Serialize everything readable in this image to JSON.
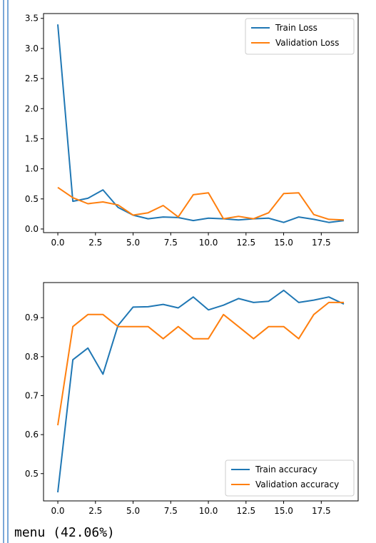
{
  "output_text": "menu (42.06%)",
  "chart_data": [
    {
      "type": "line",
      "x": [
        0,
        1,
        2,
        3,
        4,
        5,
        6,
        7,
        8,
        9,
        10,
        11,
        12,
        13,
        14,
        15,
        16,
        17,
        18,
        19
      ],
      "xlim": [
        -0.95,
        19.95
      ],
      "ylim": [
        -0.06,
        3.58
      ],
      "xticks": [
        0.0,
        2.5,
        5.0,
        7.5,
        10.0,
        12.5,
        15.0,
        17.5
      ],
      "xtick_labels": [
        "0.0",
        "2.5",
        "5.0",
        "7.5",
        "10.0",
        "12.5",
        "15.0",
        "17.5"
      ],
      "yticks": [
        0.0,
        0.5,
        1.0,
        1.5,
        2.0,
        2.5,
        3.0,
        3.5
      ],
      "ytick_labels": [
        "0.0",
        "0.5",
        "1.0",
        "1.5",
        "2.0",
        "2.5",
        "3.0",
        "3.5"
      ],
      "legend_position": "top-right",
      "series": [
        {
          "name": "Train Loss",
          "color": "#1f77b4",
          "values": [
            3.4,
            0.46,
            0.51,
            0.65,
            0.36,
            0.23,
            0.17,
            0.2,
            0.19,
            0.14,
            0.18,
            0.17,
            0.15,
            0.17,
            0.18,
            0.11,
            0.2,
            0.16,
            0.11,
            0.14
          ]
        },
        {
          "name": "Validation Loss",
          "color": "#ff7f0e",
          "values": [
            0.69,
            0.52,
            0.42,
            0.45,
            0.4,
            0.23,
            0.27,
            0.39,
            0.2,
            0.57,
            0.6,
            0.17,
            0.21,
            0.17,
            0.27,
            0.59,
            0.6,
            0.24,
            0.16,
            0.15
          ]
        }
      ]
    },
    {
      "type": "line",
      "x": [
        0,
        1,
        2,
        3,
        4,
        5,
        6,
        7,
        8,
        9,
        10,
        11,
        12,
        13,
        14,
        15,
        16,
        17,
        18,
        19
      ],
      "xlim": [
        -0.95,
        19.95
      ],
      "ylim": [
        0.43,
        0.99
      ],
      "xticks": [
        0.0,
        2.5,
        5.0,
        7.5,
        10.0,
        12.5,
        15.0,
        17.5
      ],
      "xtick_labels": [
        "0.0",
        "2.5",
        "5.0",
        "7.5",
        "10.0",
        "12.5",
        "15.0",
        "17.5"
      ],
      "yticks": [
        0.5,
        0.6,
        0.7,
        0.8,
        0.9
      ],
      "ytick_labels": [
        "0.5",
        "0.6",
        "0.7",
        "0.8",
        "0.9"
      ],
      "legend_position": "bottom-right",
      "series": [
        {
          "name": "Train accuracy",
          "color": "#1f77b4",
          "values": [
            0.452,
            0.792,
            0.822,
            0.755,
            0.88,
            0.927,
            0.928,
            0.934,
            0.925,
            0.953,
            0.92,
            0.932,
            0.949,
            0.939,
            0.942,
            0.97,
            0.939,
            0.945,
            0.953,
            0.935
          ]
        },
        {
          "name": "Validation accuracy",
          "color": "#ff7f0e",
          "values": [
            0.624,
            0.877,
            0.908,
            0.908,
            0.877,
            0.877,
            0.877,
            0.846,
            0.877,
            0.846,
            0.846,
            0.908,
            0.877,
            0.846,
            0.877,
            0.877,
            0.846,
            0.908,
            0.939,
            0.939
          ]
        }
      ]
    }
  ]
}
